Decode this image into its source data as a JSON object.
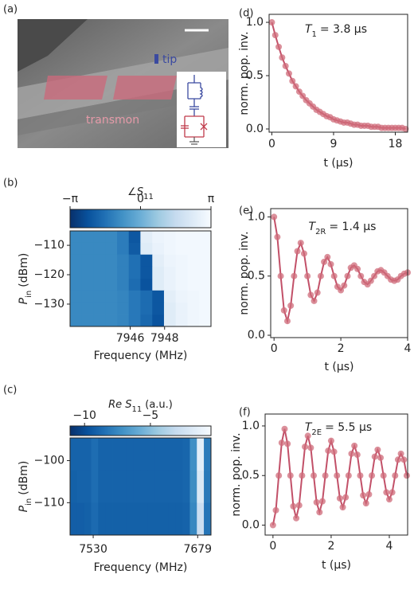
{
  "panel_a": {
    "label": "(a)",
    "tip_label": "tip",
    "transmon_label": "transmon"
  },
  "chart_data": [
    {
      "type": "heatmap",
      "panel": "(b)",
      "colorbar_label": {
        "symbol": "∠S",
        "subscript": "11"
      },
      "clim": [
        -3.14159,
        3.14159
      ],
      "cticks": [
        {
          "value": -3.14159,
          "label": "−π"
        },
        0,
        {
          "value": 3.14159,
          "label": "π"
        }
      ],
      "colormap": [
        "#08306b",
        "#08519c",
        "#2171b5",
        "#4292c6",
        "#6baed6",
        "#9ecae1",
        "#c6dbef",
        "#deebf7",
        "#f7fbff"
      ],
      "x": [
        7942.84,
        7943.53,
        7944.21,
        7944.89,
        7945.58,
        7946.26,
        7946.94,
        7947.63,
        7948.31,
        7948.99,
        7949.68,
        7950.36
      ],
      "y": [
        -107.1,
        -111.2,
        -115.2,
        -119.3,
        -123.4,
        -127.4,
        -131.5,
        -135.6
      ],
      "z": [
        [
          -1.0,
          -1.0,
          -1.0,
          -1.0,
          -1.3,
          -2.2,
          2.5,
          2.8,
          2.9,
          3.0,
          3.0,
          3.0
        ],
        [
          -1.0,
          -1.0,
          -1.0,
          -1.0,
          -1.3,
          -2.1,
          2.4,
          2.7,
          2.9,
          3.0,
          3.0,
          3.0
        ],
        [
          -1.0,
          -1.0,
          -1.0,
          -1.0,
          -1.2,
          -1.6,
          -2.2,
          2.5,
          2.8,
          2.9,
          3.0,
          3.0
        ],
        [
          -1.0,
          -1.0,
          -1.0,
          -1.0,
          -1.2,
          -1.6,
          -2.2,
          2.4,
          2.7,
          2.9,
          3.0,
          3.0
        ],
        [
          -1.0,
          -1.0,
          -1.0,
          -1.0,
          -1.2,
          -1.7,
          -2.3,
          2.4,
          2.7,
          2.9,
          3.0,
          3.0
        ],
        [
          -1.0,
          -1.0,
          -1.0,
          -1.0,
          -1.1,
          -1.4,
          -1.7,
          -2.2,
          2.5,
          2.8,
          2.9,
          3.0
        ],
        [
          -1.0,
          -1.0,
          -1.0,
          -1.0,
          -1.1,
          -1.4,
          -1.7,
          -2.2,
          2.4,
          2.7,
          2.9,
          3.0
        ],
        [
          -1.0,
          -1.0,
          -1.0,
          -1.0,
          -1.1,
          -1.4,
          -1.8,
          -2.3,
          2.4,
          2.7,
          2.9,
          3.0
        ]
      ],
      "xlim": [
        7942.5,
        7950.7
      ],
      "ylim": [
        -137.6,
        -105.1
      ],
      "xticks": [
        7946,
        7948
      ],
      "yticks": [
        {
          "value": -110,
          "label": "−110"
        },
        {
          "value": -120,
          "label": "−120"
        },
        {
          "value": -130,
          "label": "−130"
        }
      ],
      "xlabel": "Frequency (MHz)",
      "ylabel": {
        "symbol": "P",
        "subscript": "in",
        "unit": "(dBm)"
      }
    },
    {
      "type": "heatmap",
      "panel": "(c)",
      "colorbar_label": {
        "symbol": "Re S",
        "subscript": "11",
        "unit": "(a.u.)"
      },
      "clim": [
        -11.1,
        -0.4
      ],
      "cticks": [
        {
          "value": -10,
          "label": "−10"
        },
        {
          "value": -5,
          "label": "−5"
        }
      ],
      "colormap": [
        "#08306b",
        "#08519c",
        "#2171b5",
        "#4292c6",
        "#6baed6",
        "#9ecae1",
        "#c6dbef",
        "#deebf7",
        "#f7fbff"
      ],
      "x": [
        7502.0,
        7512.1,
        7522.1,
        7532.2,
        7542.2,
        7552.2,
        7562.3,
        7572.4,
        7582.4,
        7592.5,
        7602.5,
        7612.6,
        7622.6,
        7632.7,
        7642.7,
        7652.7,
        7662.8,
        7672.9,
        7682.9,
        7692.9
      ],
      "y": [
        -98.5,
        -106.2,
        -113.9
      ],
      "z": [
        [
          -9.0,
          -9.0,
          -9.0,
          -8.6,
          -9.0,
          -9.0,
          -9.0,
          -9.0,
          -9.0,
          -9.0,
          -9.0,
          -9.0,
          -9.0,
          -9.0,
          -9.0,
          -9.0,
          -8.9,
          -7.2,
          -1.5,
          -8.0
        ],
        [
          -9.1,
          -9.0,
          -9.0,
          -8.6,
          -9.0,
          -9.0,
          -9.0,
          -9.0,
          -9.0,
          -9.0,
          -9.0,
          -9.0,
          -9.0,
          -9.0,
          -9.0,
          -9.0,
          -8.9,
          -7.3,
          -2.0,
          -8.1
        ],
        [
          -9.2,
          -9.2,
          -9.1,
          -8.7,
          -9.1,
          -9.1,
          -9.1,
          -9.1,
          -9.1,
          -9.1,
          -9.1,
          -9.1,
          -9.1,
          -9.1,
          -9.1,
          -9.1,
          -9.0,
          -7.5,
          -2.8,
          -8.3
        ]
      ],
      "xlim": [
        7497,
        7698
      ],
      "ylim": [
        -117.7,
        -94.6
      ],
      "xticks": [
        7530,
        7679
      ],
      "yticks": [
        {
          "value": -100,
          "label": "−100"
        },
        {
          "value": -110,
          "label": "−110"
        }
      ],
      "xlabel": "Frequency (MHz)",
      "ylabel": {
        "symbol": "P",
        "subscript": "in",
        "unit": "(dBm)"
      }
    },
    {
      "type": "scatter",
      "panel": "(d)",
      "annotation": {
        "symbol": "T",
        "subscript": "1",
        "text": "= 3.8 μs"
      },
      "color": "#cf6b7a",
      "line_color": "#c25068",
      "x": [
        0,
        0.5,
        1,
        1.5,
        2,
        2.5,
        3,
        3.5,
        4,
        4.5,
        5,
        5.5,
        6,
        6.5,
        7,
        7.5,
        8,
        8.5,
        9,
        9.5,
        10,
        10.5,
        11,
        11.5,
        12,
        12.5,
        13,
        13.5,
        14,
        14.5,
        15,
        15.5,
        16,
        16.5,
        17,
        17.5,
        18,
        18.5,
        19,
        19.5
      ],
      "values": [
        1.0,
        0.88,
        0.77,
        0.67,
        0.59,
        0.52,
        0.45,
        0.4,
        0.35,
        0.31,
        0.27,
        0.24,
        0.21,
        0.18,
        0.16,
        0.14,
        0.12,
        0.11,
        0.09,
        0.08,
        0.07,
        0.06,
        0.06,
        0.05,
        0.04,
        0.04,
        0.03,
        0.03,
        0.03,
        0.02,
        0.02,
        0.02,
        0.01,
        0.01,
        0.01,
        0.01,
        0.01,
        0.01,
        0.01,
        0.0
      ],
      "xlim": [
        -0.4,
        19.8
      ],
      "ylim": [
        -0.03,
        1.075
      ],
      "xticks": [
        0,
        9,
        18
      ],
      "yticks": [
        {
          "value": 0,
          "label": "0.0"
        },
        {
          "value": 0.5,
          "label": "0.5"
        },
        {
          "value": 1,
          "label": "1.0"
        }
      ],
      "xlabel": "t (μs)",
      "ylabel": "norm. pop. inv."
    },
    {
      "type": "scatter",
      "panel": "(e)",
      "annotation": {
        "symbol": "T",
        "subscript": "2R",
        "text": "= 1.4 μs"
      },
      "color": "#cf6b7a",
      "line_color": "#c25068",
      "x": [
        0,
        0.1,
        0.2,
        0.3,
        0.4,
        0.5,
        0.6,
        0.7,
        0.8,
        0.9,
        1.0,
        1.1,
        1.2,
        1.3,
        1.4,
        1.5,
        1.6,
        1.7,
        1.8,
        1.9,
        2.0,
        2.1,
        2.2,
        2.3,
        2.4,
        2.5,
        2.6,
        2.7,
        2.8,
        2.9,
        3.0,
        3.1,
        3.2,
        3.3,
        3.4,
        3.5,
        3.6,
        3.7,
        3.8,
        3.9,
        4.0
      ],
      "values": [
        1.0,
        0.83,
        0.5,
        0.21,
        0.12,
        0.25,
        0.5,
        0.71,
        0.78,
        0.69,
        0.5,
        0.34,
        0.29,
        0.36,
        0.5,
        0.62,
        0.66,
        0.6,
        0.5,
        0.41,
        0.38,
        0.42,
        0.5,
        0.57,
        0.59,
        0.56,
        0.5,
        0.45,
        0.43,
        0.46,
        0.5,
        0.54,
        0.55,
        0.53,
        0.5,
        0.47,
        0.46,
        0.47,
        0.5,
        0.52,
        0.53
      ],
      "xlim": [
        -0.1,
        4.0
      ],
      "ylim": [
        -0.02,
        1.07
      ],
      "xticks": [
        0,
        2,
        4
      ],
      "yticks": [
        {
          "value": 0,
          "label": "0.0"
        },
        {
          "value": 0.5,
          "label": "0.5"
        },
        {
          "value": 1,
          "label": "1.0"
        }
      ],
      "xlabel": "t (μs)",
      "ylabel": "norm. pop. inv."
    },
    {
      "type": "scatter",
      "panel": "(f)",
      "annotation": {
        "symbol": "T",
        "subscript": "2E",
        "text": "= 5.5 μs"
      },
      "color": "#cf6b7a",
      "line_color": "#c25068",
      "x": [
        0,
        0.1,
        0.2,
        0.3,
        0.4,
        0.5,
        0.6,
        0.7,
        0.8,
        0.9,
        1.0,
        1.1,
        1.2,
        1.3,
        1.4,
        1.5,
        1.6,
        1.7,
        1.8,
        1.9,
        2.0,
        2.1,
        2.2,
        2.3,
        2.4,
        2.5,
        2.6,
        2.7,
        2.8,
        2.9,
        3.0,
        3.1,
        3.2,
        3.3,
        3.4,
        3.5,
        3.6,
        3.7,
        3.8,
        3.9,
        4.0,
        4.1,
        4.2,
        4.3,
        4.4,
        4.5,
        4.6
      ],
      "values": [
        0.0,
        0.15,
        0.5,
        0.83,
        0.97,
        0.82,
        0.5,
        0.19,
        0.07,
        0.2,
        0.5,
        0.79,
        0.9,
        0.78,
        0.5,
        0.23,
        0.13,
        0.24,
        0.5,
        0.75,
        0.85,
        0.74,
        0.5,
        0.27,
        0.18,
        0.28,
        0.5,
        0.72,
        0.8,
        0.71,
        0.5,
        0.3,
        0.22,
        0.31,
        0.5,
        0.69,
        0.76,
        0.68,
        0.5,
        0.33,
        0.26,
        0.33,
        0.5,
        0.66,
        0.72,
        0.66,
        0.5
      ],
      "xlim": [
        -0.27,
        4.63
      ],
      "ylim": [
        -0.1,
        1.12
      ],
      "xticks": [
        0,
        2,
        4
      ],
      "yticks": [
        {
          "value": 0,
          "label": "0.0"
        },
        {
          "value": 0.5,
          "label": "0.5"
        },
        {
          "value": 1,
          "label": "1.0"
        }
      ],
      "xlabel": "t (μs)",
      "ylabel": "norm. pop. inv."
    }
  ]
}
